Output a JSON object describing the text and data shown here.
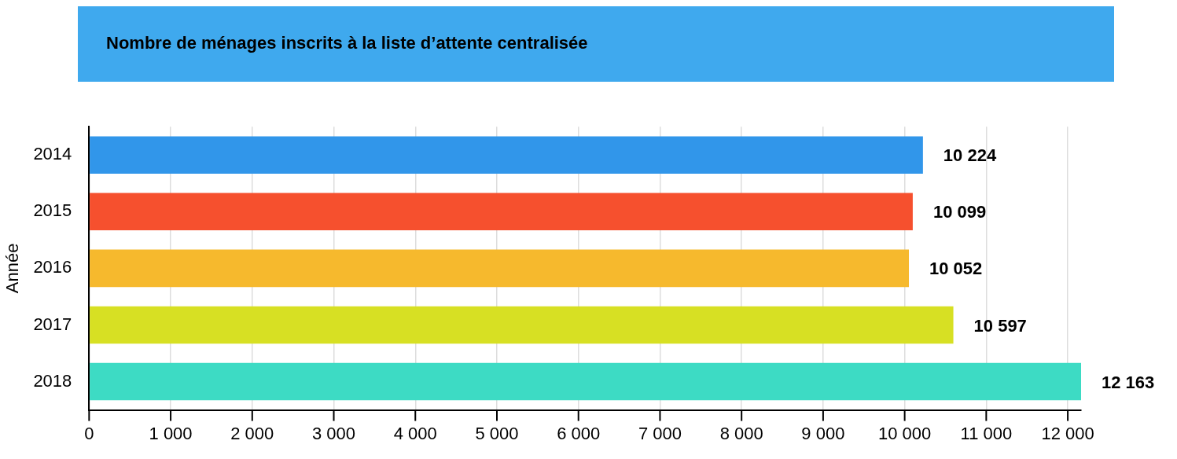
{
  "chart_data": {
    "type": "bar",
    "orientation": "horizontal",
    "title": "Nombre de ménages inscrits à la liste d’attente centralisée",
    "ylabel": "Année",
    "categories": [
      "2014",
      "2015",
      "2016",
      "2017",
      "2018"
    ],
    "values": [
      10224,
      10099,
      10052,
      10597,
      12163
    ],
    "colors": [
      "#3196ea",
      "#f6502e",
      "#f6b92d",
      "#d7e023",
      "#3ddbc4"
    ],
    "value_labels": [
      "10 224",
      "10 099",
      "10 052",
      "10 597",
      "12 163"
    ],
    "xlim": [
      0,
      12163
    ],
    "xticks": [
      0,
      {
        "value": 1000,
        "label": "1 000"
      },
      {
        "value": 2000,
        "label": "2 000"
      },
      {
        "value": 3000,
        "label": "3 000"
      },
      {
        "value": 4000,
        "label": "4 000"
      },
      {
        "value": 5000,
        "label": "5 000"
      },
      {
        "value": 6000,
        "label": "6 000"
      },
      {
        "value": 7000,
        "label": "7 000"
      },
      {
        "value": 8000,
        "label": "8 000"
      },
      {
        "value": 9000,
        "label": "9 000"
      },
      {
        "value": 10000,
        "label": "10 000"
      },
      {
        "value": 11000,
        "label": "11 000"
      },
      {
        "value": 12000,
        "label": "12 000"
      }
    ],
    "grid": "x",
    "legend": false
  }
}
